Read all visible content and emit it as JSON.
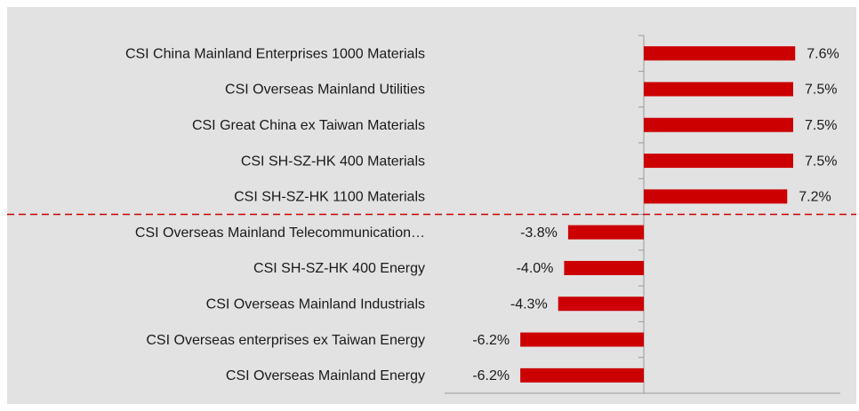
{
  "chart_data": {
    "type": "hbar",
    "categories": [
      "CSI China Mainland Enterprises 1000 Materials",
      "CSI Overseas Mainland Utilities",
      "CSI Great China ex Taiwan Materials",
      "CSI SH-SZ-HK 400 Materials",
      "CSI SH-SZ-HK 1100 Materials",
      "CSI Overseas Mainland Telecommunication…",
      "CSI SH-SZ-HK 400 Energy",
      "CSI Overseas Mainland Industrials",
      "CSI Overseas enterprises ex Taiwan Energy",
      "CSI Overseas Mainland Energy"
    ],
    "values": [
      7.6,
      7.5,
      7.5,
      7.5,
      7.2,
      -3.8,
      -4.0,
      -4.3,
      -6.2,
      -6.2
    ],
    "value_labels": [
      "7.6%",
      "7.5%",
      "7.5%",
      "7.5%",
      "7.2%",
      "-3.8%",
      "-4.0%",
      "-4.3%",
      "-6.2%",
      "-6.2%"
    ],
    "color": "#cc0000",
    "xlim": [
      -10,
      10
    ]
  }
}
